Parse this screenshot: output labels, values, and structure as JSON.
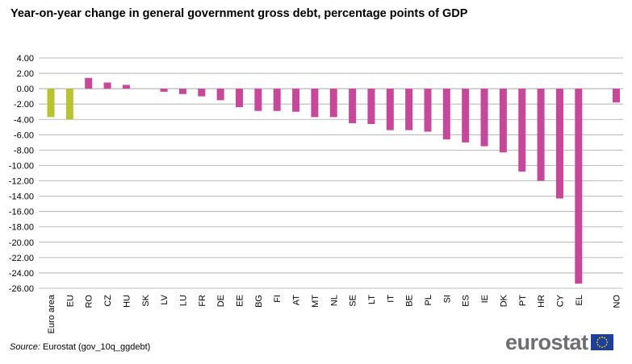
{
  "title": "Year-on-year change in general government gross debt, percentage points of GDP",
  "source_prefix": "Source:",
  "source_text": "Eurostat (gov_10q_ggdebt)",
  "logo_text": "eurostat",
  "colors": {
    "aggregate_bar": "#b9c230",
    "country_bar": "#c7489a",
    "gridline": "#a6a6a6",
    "logo_text": "#6d6e71",
    "flag_blue": "#1f3f98",
    "flag_star": "#ffdd00"
  },
  "chart_data": {
    "type": "bar",
    "title": "Year-on-year change in general government gross debt, percentage points of GDP",
    "xlabel": "",
    "ylabel": "",
    "ylim": [
      -26,
      4
    ],
    "grid": true,
    "y_ticks": [
      "4.00",
      "2.00",
      "0.00",
      "-2.00",
      "-4.00",
      "-6.00",
      "-8.00",
      "-10.00",
      "-12.00",
      "-14.00",
      "-16.00",
      "-18.00",
      "-20.00",
      "-22.00",
      "-24.00",
      "-26.00"
    ],
    "categories": [
      "Euro area",
      "EU",
      "RO",
      "CZ",
      "HU",
      "SK",
      "LV",
      "LU",
      "FR",
      "DE",
      "EE",
      "BG",
      "FI",
      "AT",
      "MT",
      "NL",
      "SE",
      "LT",
      "IT",
      "BE",
      "PL",
      "SI",
      "ES",
      "IE",
      "DK",
      "PT",
      "HR",
      "CY",
      "EL",
      "",
      "NO"
    ],
    "values": [
      -3.7,
      -4.0,
      1.4,
      0.8,
      0.5,
      0.0,
      -0.4,
      -0.7,
      -1.0,
      -1.5,
      -2.4,
      -2.9,
      -2.9,
      -3.0,
      -3.7,
      -3.7,
      -4.5,
      -4.6,
      -5.4,
      -5.4,
      -5.6,
      -6.6,
      -7.0,
      -7.5,
      -8.3,
      -10.8,
      -12.0,
      -14.3,
      -25.4,
      null,
      -1.8
    ],
    "aggregates": [
      "Euro area",
      "EU"
    ]
  }
}
